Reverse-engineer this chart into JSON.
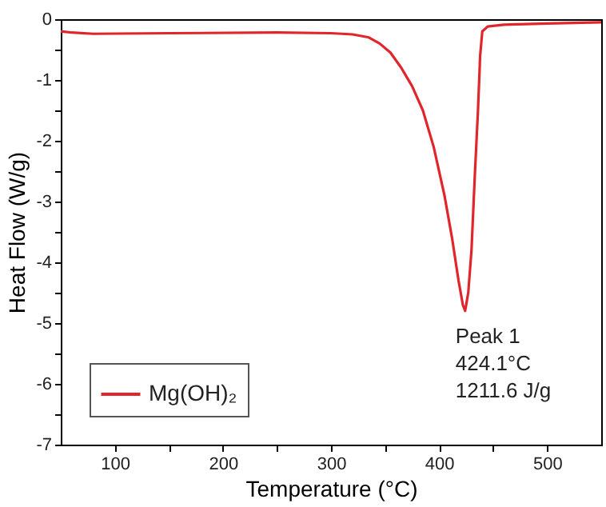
{
  "chart_data": {
    "type": "line",
    "xlabel": "Temperature (°C)",
    "ylabel": "Heat Flow (W/g)",
    "x": [
      50,
      60,
      80,
      150,
      250,
      300,
      320,
      335,
      345,
      355,
      365,
      375,
      385,
      395,
      405,
      412,
      418,
      422,
      424.1,
      427,
      430,
      433,
      436,
      438,
      440,
      445,
      460,
      500,
      550
    ],
    "series": [
      {
        "name": "Mg(OH)₂",
        "color": "#e0262b",
        "values": [
          -0.2,
          -0.22,
          -0.24,
          -0.23,
          -0.22,
          -0.23,
          -0.25,
          -0.3,
          -0.4,
          -0.55,
          -0.8,
          -1.1,
          -1.5,
          -2.1,
          -2.9,
          -3.6,
          -4.3,
          -4.7,
          -4.8,
          -4.5,
          -3.8,
          -2.6,
          -1.5,
          -0.6,
          -0.2,
          -0.12,
          -0.09,
          -0.07,
          -0.05
        ]
      }
    ],
    "xlim": [
      50,
      550
    ],
    "xticks": [
      100,
      {
        "value": 150,
        "label": null
      },
      200,
      {
        "value": 250,
        "label": null
      },
      300,
      {
        "value": 350,
        "label": null
      },
      400,
      {
        "value": 450,
        "label": null
      },
      500
    ],
    "ylim": [
      -7,
      0
    ],
    "yticks": [
      -7,
      {
        "value": -6.5,
        "label": null
      },
      -6,
      {
        "value": -5.5,
        "label": null
      },
      -5,
      {
        "value": -4.5,
        "label": null
      },
      -4,
      {
        "value": -3.5,
        "label": null
      },
      -3,
      {
        "value": -2.5,
        "label": null
      },
      -2,
      {
        "value": -1.5,
        "label": null
      },
      -1,
      {
        "value": -0.5,
        "label": null
      },
      0
    ],
    "annotations": [
      {
        "text": "Peak 1\n424.1°C\n1211.6 J/g",
        "x": 424.1,
        "y": -4.8
      }
    ],
    "legend": "bottom left",
    "grid": false,
    "marker": "none",
    "line_style": "solid"
  }
}
